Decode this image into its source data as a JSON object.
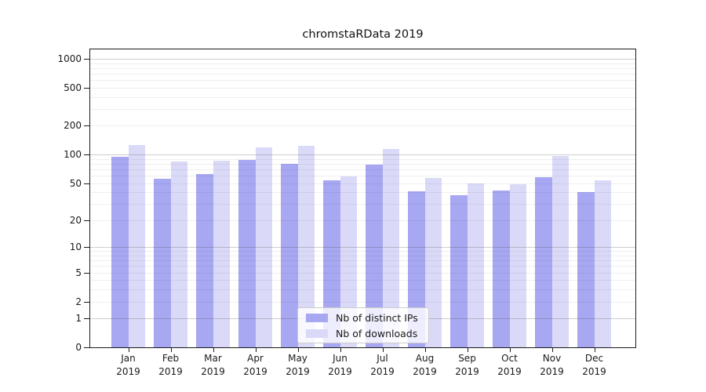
{
  "chart_data": {
    "type": "bar",
    "title": "chromstaRData 2019",
    "categories": [
      "Jan",
      "Feb",
      "Mar",
      "Apr",
      "May",
      "Jun",
      "Jul",
      "Aug",
      "Sep",
      "Oct",
      "Nov",
      "Dec"
    ],
    "year_label": "2019",
    "series": [
      {
        "name": "Nb of distinct IPs",
        "color": "#a7a7f2",
        "values": [
          94,
          56,
          62,
          88,
          80,
          54,
          78,
          41,
          37,
          42,
          58,
          40
        ]
      },
      {
        "name": "Nb of downloads",
        "color": "#dadaf8",
        "values": [
          127,
          84,
          86,
          119,
          123,
          59,
          115,
          57,
          50,
          49,
          97,
          54
        ]
      }
    ],
    "yscale": "log1p",
    "ylim": [
      0,
      1250
    ],
    "yticks": [
      0,
      1,
      2,
      5,
      10,
      20,
      50,
      100,
      200,
      500,
      1000
    ],
    "ytick_labels": [
      "0",
      "1",
      "2",
      "5",
      "10",
      "20",
      "50",
      "100",
      "200",
      "500",
      "1000"
    ],
    "grid": {
      "major": [
        1,
        10,
        100,
        1000
      ],
      "minor": [
        2,
        3,
        4,
        5,
        6,
        7,
        8,
        9,
        20,
        30,
        40,
        50,
        60,
        70,
        80,
        90,
        200,
        300,
        400,
        500,
        600,
        700,
        800,
        900
      ]
    },
    "legend_position": "lower center",
    "grid_on": true
  }
}
